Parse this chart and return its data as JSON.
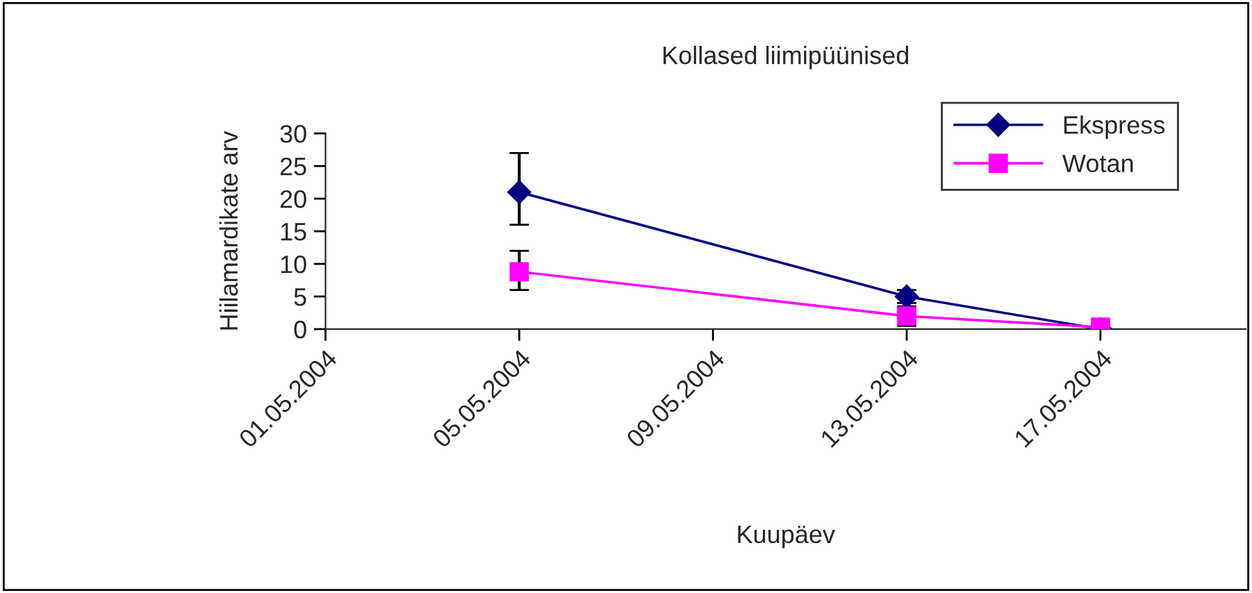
{
  "chart_data": {
    "type": "line",
    "title": "Kollased liimipüünised",
    "xlabel": "Kuupäev",
    "ylabel": "Hiilamardikate arv",
    "x": [
      "2004-05-05",
      "2004-05-13",
      "2004-05-17"
    ],
    "series": [
      {
        "name": "Ekspress",
        "color": "#000080",
        "marker": "diamond",
        "values": [
          21,
          5,
          0
        ],
        "errors": [
          [
            16,
            27
          ],
          [
            4,
            6
          ],
          [
            0,
            0.3
          ]
        ]
      },
      {
        "name": "Wotan",
        "color": "#ff00ff",
        "marker": "square",
        "values": [
          8.8,
          2,
          0.3
        ],
        "errors": [
          [
            6,
            12
          ],
          [
            0.5,
            3.5
          ],
          [
            0,
            0.6
          ]
        ]
      }
    ],
    "xlim": [
      "2004-05-01",
      "2004-05-20"
    ],
    "xticks": [
      {
        "value": "2004-05-01",
        "label": "01.05.2004"
      },
      {
        "value": "2004-05-05",
        "label": "05.05.2004"
      },
      {
        "value": "2004-05-09",
        "label": "09.05.2004"
      },
      {
        "value": "2004-05-13",
        "label": "13.05.2004"
      },
      {
        "value": "2004-05-17",
        "label": "17.05.2004"
      }
    ],
    "ylim": [
      0,
      30
    ],
    "yticks": [
      0,
      5,
      10,
      15,
      20,
      25,
      30
    ],
    "grid": false,
    "legend": "top right",
    "line_style": "solid"
  }
}
